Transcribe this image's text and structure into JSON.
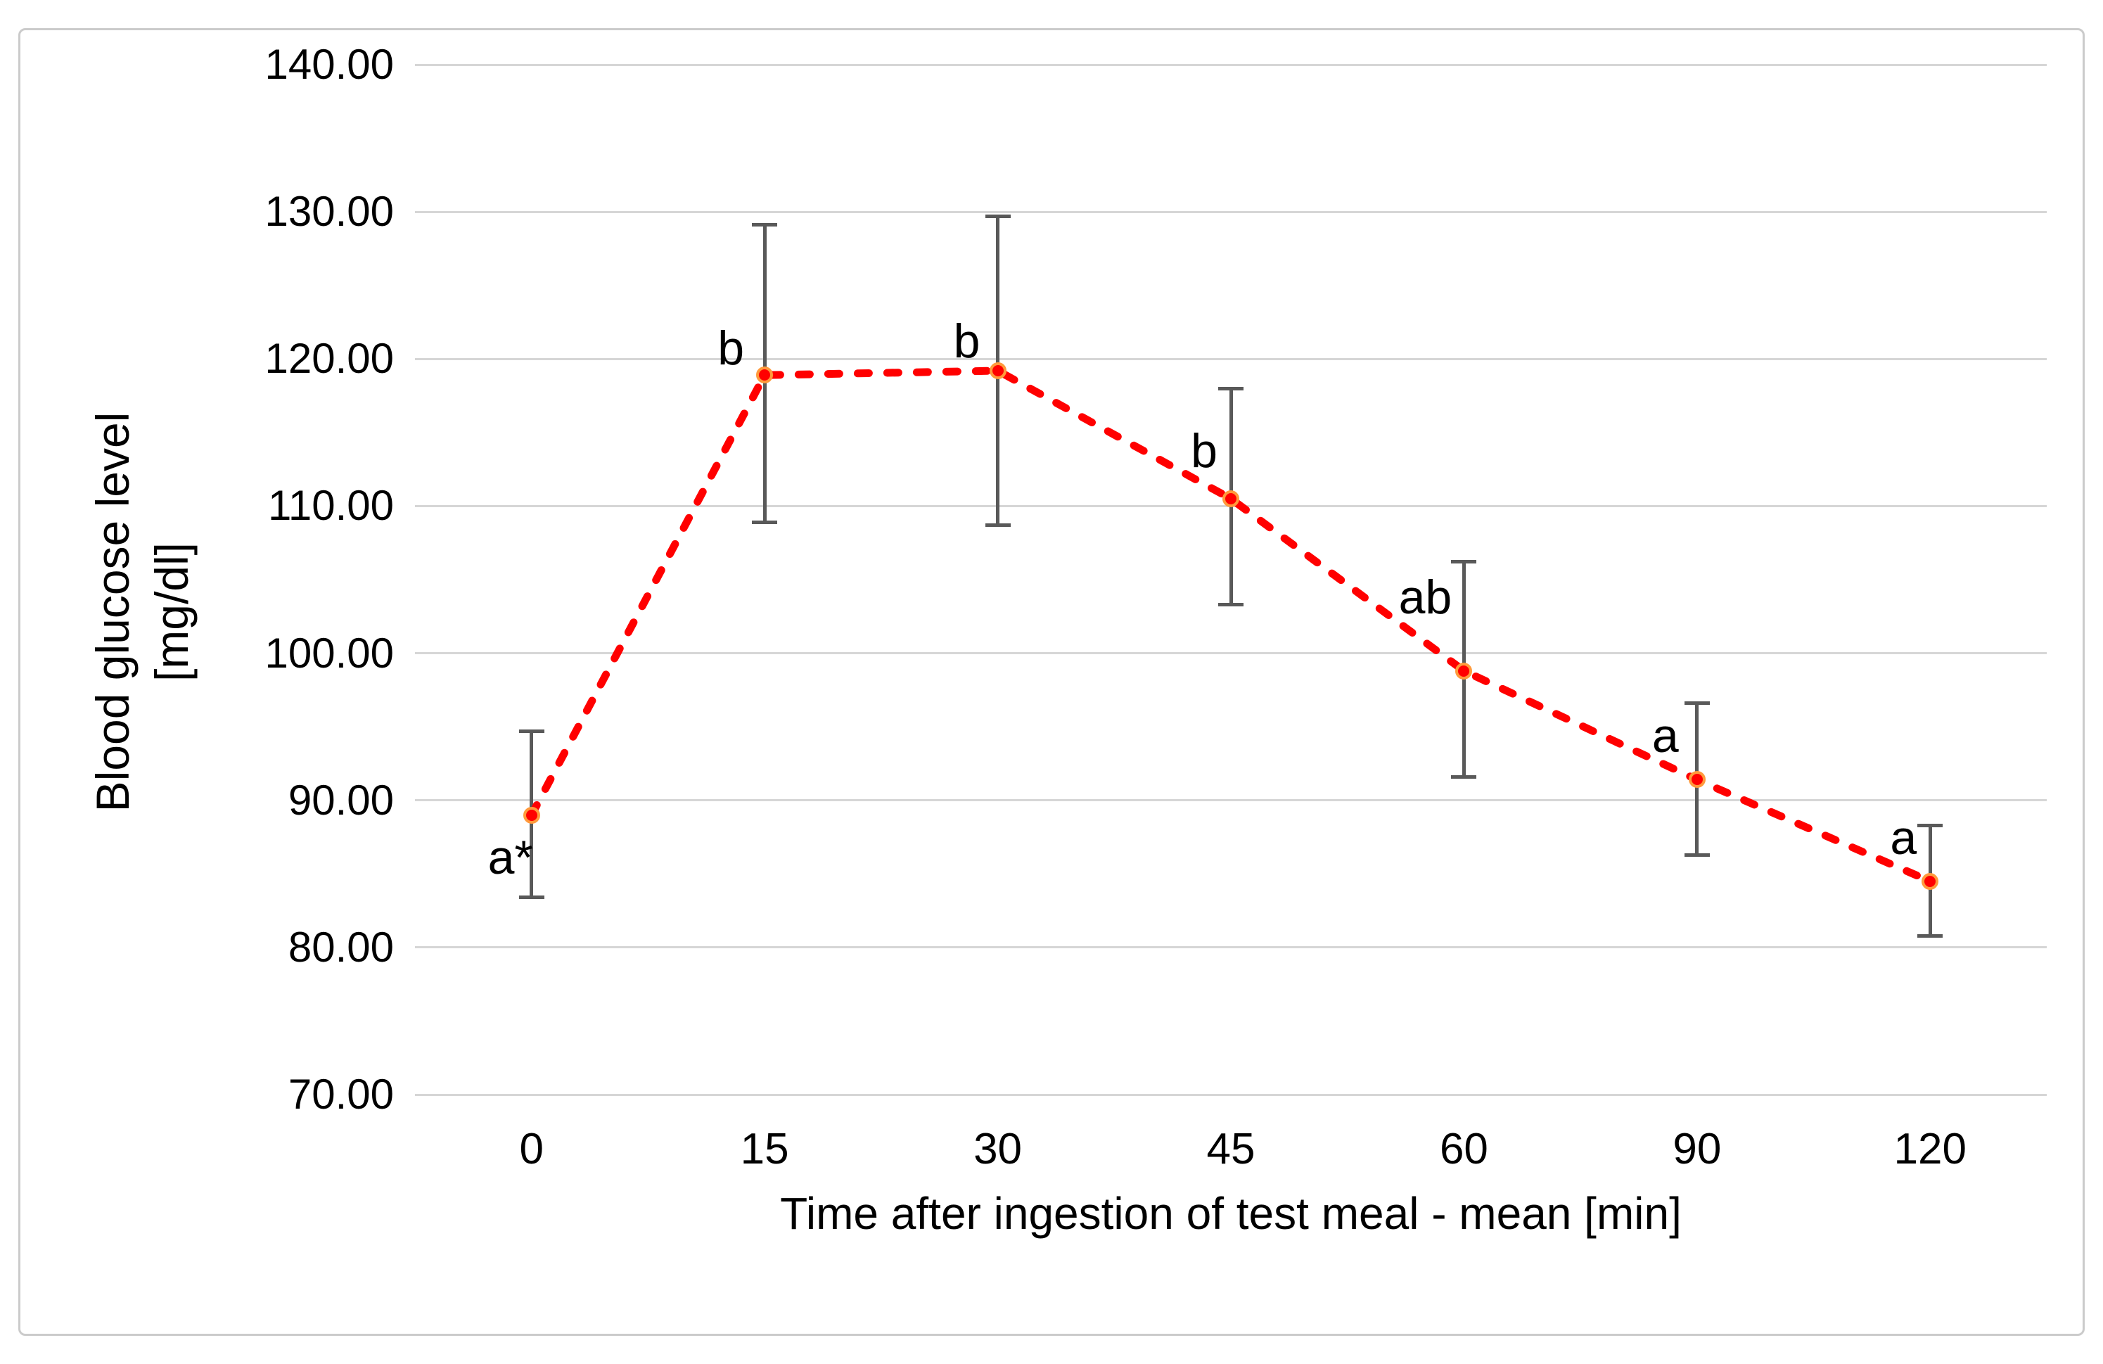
{
  "figure": {
    "border_color": "#CBCBCB",
    "background": "#FFFFFF"
  },
  "chart_data": {
    "type": "line",
    "title": "",
    "xlabel": "Time after ingestion of test meal - mean [min]",
    "ylabel": "Blood glucose level [mg/dl]",
    "ylabel_lines": [
      "Blood glucose level",
      "[mg/dl]"
    ],
    "x_categories": [
      "0",
      "15",
      "30",
      "45",
      "60",
      "90",
      "120"
    ],
    "y_ticks": [
      "140.00",
      "130.00",
      "120.00",
      "110.00",
      "100.00",
      "90.00",
      "80.00",
      "70.00"
    ],
    "ylim": [
      70,
      140
    ],
    "y_tick_step": 10,
    "grid": true,
    "legend": "none",
    "line_color": "#FF0000",
    "line_style": "dashed",
    "gridline_color": "#D6D6D6",
    "error_bar_color": "#595959",
    "marker_fill": "#FF0000",
    "marker_ring": "#FF9A3C",
    "series": [
      {
        "name": "Blood glucose level - mean",
        "points": [
          {
            "time_min": 0,
            "mean": 89.0,
            "upper": 94.7,
            "lower": 83.4,
            "sig": "a*"
          },
          {
            "time_min": 15,
            "mean": 118.9,
            "upper": 129.1,
            "lower": 108.9,
            "sig": "b"
          },
          {
            "time_min": 30,
            "mean": 119.2,
            "upper": 129.7,
            "lower": 108.7,
            "sig": "b"
          },
          {
            "time_min": 45,
            "mean": 110.5,
            "upper": 118.0,
            "lower": 103.3,
            "sig": "b"
          },
          {
            "time_min": 60,
            "mean": 98.8,
            "upper": 106.2,
            "lower": 91.6,
            "sig": "ab"
          },
          {
            "time_min": 90,
            "mean": 91.4,
            "upper": 96.6,
            "lower": 86.3,
            "sig": "a"
          },
          {
            "time_min": 120,
            "mean": 84.5,
            "upper": 88.3,
            "lower": 80.8,
            "sig": "a"
          }
        ]
      }
    ]
  }
}
